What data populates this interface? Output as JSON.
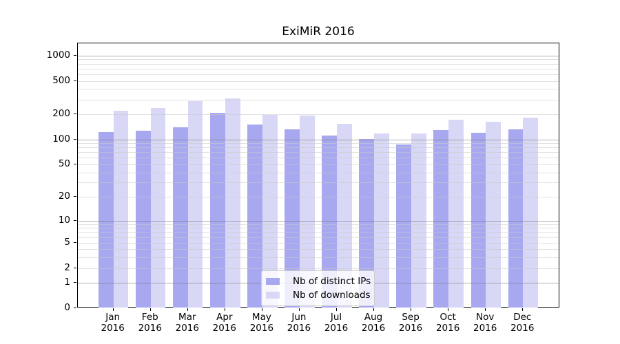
{
  "chart_data": {
    "type": "bar",
    "title": "ExiMiR 2016",
    "x_axis": {
      "months": [
        "Jan",
        "Feb",
        "Mar",
        "Apr",
        "May",
        "Jun",
        "Jul",
        "Aug",
        "Sep",
        "Oct",
        "Nov",
        "Dec"
      ],
      "year": "2016"
    },
    "y_axis": {
      "scale": "log10(1+x)",
      "ticks": [
        0,
        1,
        2,
        5,
        10,
        20,
        50,
        100,
        200,
        500,
        1000
      ],
      "major_gridlines": [
        1,
        10,
        100,
        1000
      ],
      "range_top": 1400,
      "grid": true
    },
    "series": [
      {
        "name": "Nb of distinct IPs",
        "color": "#a8a8f0",
        "values": [
          123,
          126,
          139,
          210,
          150,
          131,
          112,
          102,
          87,
          129,
          121,
          131
        ]
      },
      {
        "name": "Nb of downloads",
        "color": "#d8d8f6",
        "values": [
          219,
          236,
          285,
          310,
          195,
          194,
          154,
          118,
          119,
          172,
          164,
          182
        ]
      }
    ],
    "legend": {
      "entries": [
        "Nb of distinct IPs",
        "Nb of downloads"
      ],
      "position": "inside lower-center"
    }
  }
}
